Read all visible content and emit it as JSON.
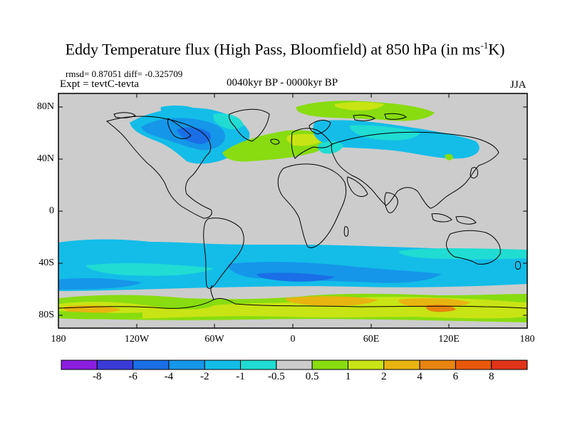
{
  "title_main": "Eddy Temperature flux (High Pass, Bloomfield) at 850 hPa (in ms",
  "title_sup": "-1",
  "title_end": "K)",
  "rmsd_line": "rmsd= 0.87051 diff= -0.325709",
  "expt_line": "Expt = tevtC-tevta",
  "subtitle": "0040kyr BP - 0000kyr BP",
  "season": "JJA",
  "lat_labels": [
    "80N",
    "40N",
    "0",
    "40S",
    "80S"
  ],
  "lon_labels": [
    "180",
    "120W",
    "60W",
    "0",
    "60E",
    "120E",
    "180"
  ],
  "colorbar": {
    "labels": [
      "-8",
      "-6",
      "-4",
      "-2",
      "-1",
      "-0.5",
      "0.5",
      "1",
      "2",
      "4",
      "6",
      "8"
    ],
    "colors": [
      "#8a1ee0",
      "#3a3ad8",
      "#1a6ee6",
      "#1596e8",
      "#13bde8",
      "#20dcd2",
      "#cccccc",
      "#88dc10",
      "#c8e414",
      "#e8b410",
      "#e88410",
      "#e8580a",
      "#e0341a"
    ]
  },
  "map_colors": {
    "background_gray": "#cccccc",
    "coastline": "#000000"
  }
}
